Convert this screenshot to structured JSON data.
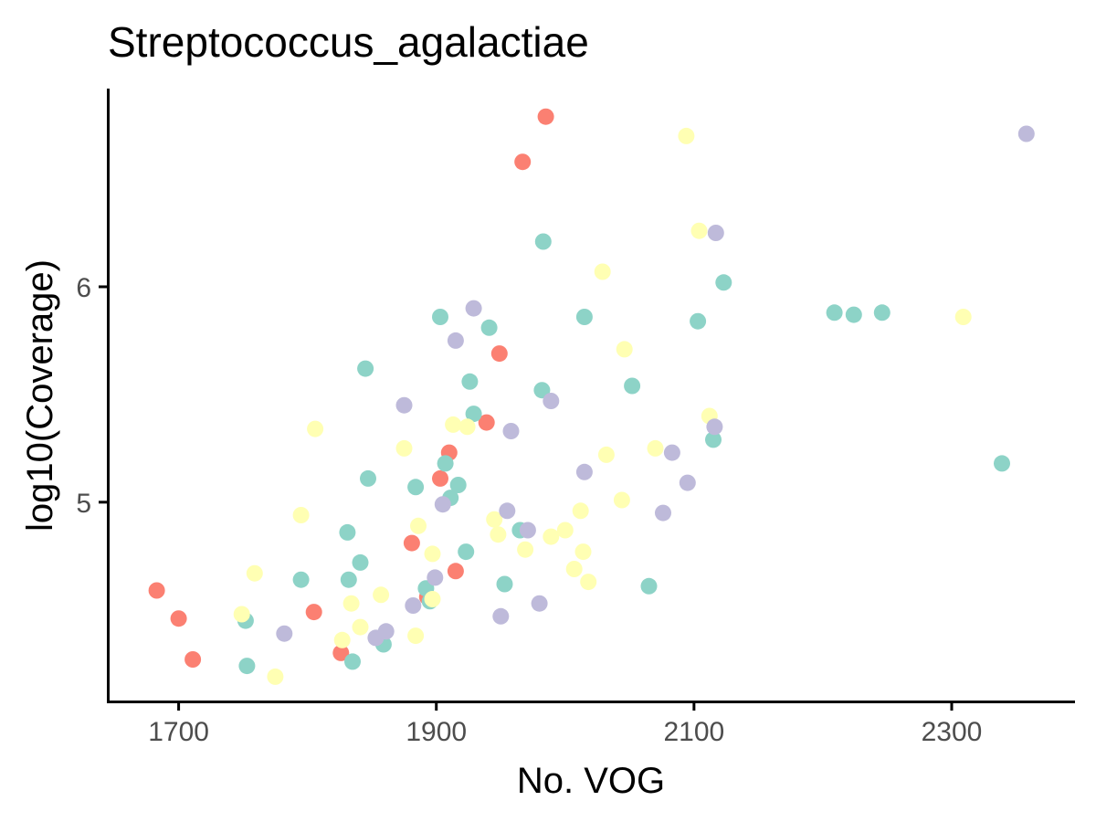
{
  "chart_data": {
    "type": "scatter",
    "title": "Streptococcus_agalactiae",
    "xlabel": "No. VOG",
    "ylabel": "log10(Coverage)",
    "xlim": [
      1645,
      2395
    ],
    "ylim": [
      4.075,
      6.92
    ],
    "x_ticks": [
      1700,
      1900,
      2100,
      2300
    ],
    "x_tick_labels": [
      "1700",
      "1900",
      "2100",
      "2300"
    ],
    "y_ticks": [
      5,
      6
    ],
    "y_tick_labels": [
      "5",
      "6"
    ],
    "grid": false,
    "legend": "none",
    "colors": {
      "salmon": "#fb8072",
      "teal": "#8dd3c7",
      "yellow": "#ffffb3",
      "lavender": "#bebada"
    },
    "series": [
      {
        "color": "#fb8072",
        "points": [
          [
            1683,
            4.59
          ],
          [
            1700,
            4.46
          ],
          [
            1711,
            4.27
          ],
          [
            1805,
            4.49
          ],
          [
            1826,
            4.3
          ],
          [
            1881,
            4.81
          ],
          [
            1893,
            4.56
          ],
          [
            1903,
            5.11
          ],
          [
            1910,
            5.23
          ],
          [
            1915,
            4.68
          ],
          [
            1939,
            5.37
          ],
          [
            1949,
            5.69
          ],
          [
            1967,
            6.58
          ],
          [
            1985,
            6.79
          ]
        ]
      },
      {
        "color": "#8dd3c7",
        "points": [
          [
            1752,
            4.45
          ],
          [
            1753,
            4.24
          ],
          [
            1795,
            4.64
          ],
          [
            1831,
            4.86
          ],
          [
            1832,
            4.64
          ],
          [
            1835,
            4.26
          ],
          [
            1841,
            4.72
          ],
          [
            1845,
            5.62
          ],
          [
            1847,
            5.11
          ],
          [
            1859,
            4.34
          ],
          [
            1884,
            5.07
          ],
          [
            1892,
            4.6
          ],
          [
            1895,
            4.54
          ],
          [
            1903,
            5.86
          ],
          [
            1907,
            5.18
          ],
          [
            1911,
            5.02
          ],
          [
            1917,
            5.08
          ],
          [
            1923,
            4.77
          ],
          [
            1926,
            5.56
          ],
          [
            1929,
            5.41
          ],
          [
            1941,
            5.81
          ],
          [
            1953,
            4.62
          ],
          [
            1965,
            4.87
          ],
          [
            1982,
            5.52
          ],
          [
            1983,
            6.21
          ],
          [
            2015,
            5.86
          ],
          [
            2052,
            5.54
          ],
          [
            2065,
            4.61
          ],
          [
            2103,
            5.84
          ],
          [
            2115,
            5.29
          ],
          [
            2123,
            6.02
          ],
          [
            2209,
            5.88
          ],
          [
            2224,
            5.87
          ],
          [
            2246,
            5.88
          ],
          [
            2339,
            5.18
          ]
        ]
      },
      {
        "color": "#ffffb3",
        "points": [
          [
            1749,
            4.48
          ],
          [
            1759,
            4.67
          ],
          [
            1775,
            4.19
          ],
          [
            1795,
            4.94
          ],
          [
            1806,
            5.34
          ],
          [
            1827,
            4.36
          ],
          [
            1834,
            4.53
          ],
          [
            1841,
            4.42
          ],
          [
            1857,
            4.57
          ],
          [
            1875,
            5.25
          ],
          [
            1884,
            4.38
          ],
          [
            1886,
            4.89
          ],
          [
            1897,
            4.76
          ],
          [
            1897,
            4.55
          ],
          [
            1913,
            5.36
          ],
          [
            1924,
            5.35
          ],
          [
            1945,
            4.92
          ],
          [
            1948,
            4.85
          ],
          [
            1969,
            4.78
          ],
          [
            1989,
            4.84
          ],
          [
            2000,
            4.87
          ],
          [
            2007,
            4.69
          ],
          [
            2012,
            4.96
          ],
          [
            2014,
            4.77
          ],
          [
            2018,
            4.63
          ],
          [
            2029,
            6.07
          ],
          [
            2032,
            5.22
          ],
          [
            2044,
            5.01
          ],
          [
            2046,
            5.71
          ],
          [
            2070,
            5.25
          ],
          [
            2094,
            6.7
          ],
          [
            2104,
            6.26
          ],
          [
            2112,
            5.4
          ],
          [
            2309,
            5.86
          ]
        ]
      },
      {
        "color": "#bebada",
        "points": [
          [
            1782,
            4.39
          ],
          [
            1853,
            4.37
          ],
          [
            1861,
            4.4
          ],
          [
            1875,
            5.45
          ],
          [
            1882,
            4.52
          ],
          [
            1899,
            4.65
          ],
          [
            1905,
            4.99
          ],
          [
            1915,
            5.75
          ],
          [
            1929,
            5.9
          ],
          [
            1950,
            4.47
          ],
          [
            1955,
            4.96
          ],
          [
            1958,
            5.33
          ],
          [
            1971,
            4.87
          ],
          [
            1980,
            4.53
          ],
          [
            1989,
            5.47
          ],
          [
            2015,
            5.14
          ],
          [
            2076,
            4.95
          ],
          [
            2083,
            5.23
          ],
          [
            2095,
            5.09
          ],
          [
            2116,
            5.35
          ],
          [
            2117,
            6.25
          ],
          [
            2358,
            6.71
          ]
        ]
      }
    ]
  }
}
